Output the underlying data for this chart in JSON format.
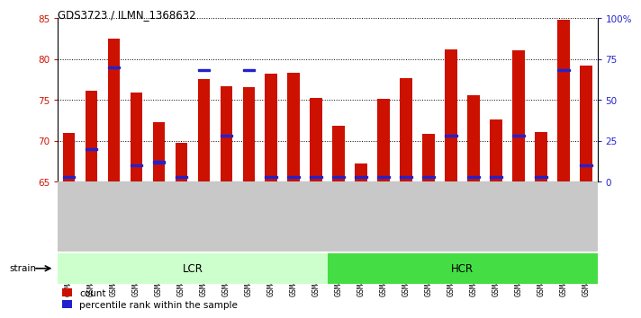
{
  "title": "GDS3723 / ILMN_1368632",
  "samples": [
    "GSM429923",
    "GSM429924",
    "GSM429925",
    "GSM429926",
    "GSM429929",
    "GSM429930",
    "GSM429933",
    "GSM429934",
    "GSM429937",
    "GSM429938",
    "GSM429941",
    "GSM429942",
    "GSM429920",
    "GSM429922",
    "GSM429927",
    "GSM429928",
    "GSM429931",
    "GSM429932",
    "GSM429935",
    "GSM429936",
    "GSM429939",
    "GSM429940",
    "GSM429943",
    "GSM429944"
  ],
  "counts": [
    71.0,
    76.1,
    82.5,
    75.9,
    72.3,
    69.8,
    77.5,
    76.7,
    76.5,
    78.2,
    78.3,
    75.2,
    71.8,
    67.2,
    75.1,
    77.7,
    70.9,
    81.2,
    75.6,
    72.6,
    81.1,
    71.1,
    84.8,
    79.2
  ],
  "percentile_ranks": [
    3,
    20,
    70,
    10,
    12,
    3,
    68,
    28,
    68,
    3,
    3,
    3,
    3,
    3,
    3,
    3,
    3,
    28,
    3,
    3,
    28,
    3,
    68,
    10
  ],
  "lcr_count": 12,
  "hcr_count": 12,
  "lcr_label": "LCR",
  "hcr_label": "HCR",
  "strain_label": "strain",
  "bar_color": "#CC1100",
  "percentile_color": "#2222CC",
  "lcr_color": "#CCFFCC",
  "hcr_color": "#44DD44",
  "ylim": [
    65,
    85
  ],
  "yticks": [
    65,
    70,
    75,
    80,
    85
  ],
  "y2ticks": [
    0,
    25,
    50,
    75,
    100
  ],
  "y2labels": [
    "0",
    "25",
    "50",
    "75",
    "100%"
  ],
  "bar_width": 0.55,
  "figsize": [
    7.31,
    3.54
  ],
  "dpi": 100
}
